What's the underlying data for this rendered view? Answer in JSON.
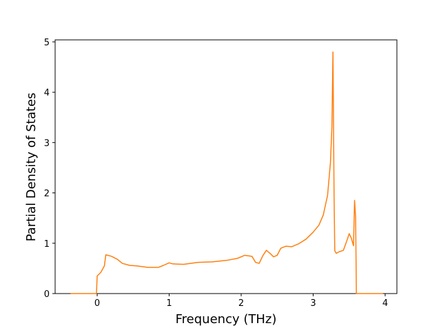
{
  "chart_data": {
    "type": "line",
    "x_label": "Frequency (THz)",
    "y_label": "Partial Density of States",
    "x": [
      -0.37,
      -0.01,
      0.0,
      0.05,
      0.1,
      0.12,
      0.2,
      0.28,
      0.35,
      0.45,
      0.55,
      0.7,
      0.85,
      0.92,
      1.0,
      1.05,
      1.2,
      1.4,
      1.6,
      1.8,
      1.95,
      2.05,
      2.15,
      2.2,
      2.25,
      2.3,
      2.35,
      2.4,
      2.45,
      2.5,
      2.55,
      2.62,
      2.7,
      2.8,
      2.9,
      3.0,
      3.08,
      3.14,
      3.2,
      3.24,
      3.26,
      3.275,
      3.29,
      3.3,
      3.32,
      3.36,
      3.42,
      3.48,
      3.5,
      3.53,
      3.56,
      3.575,
      3.59,
      3.6,
      3.97
    ],
    "series": [
      {
        "color": "#ff7f0e",
        "values": [
          0,
          0,
          0.35,
          0.42,
          0.55,
          0.77,
          0.74,
          0.68,
          0.6,
          0.56,
          0.55,
          0.52,
          0.52,
          0.56,
          0.61,
          0.59,
          0.58,
          0.62,
          0.63,
          0.66,
          0.7,
          0.76,
          0.74,
          0.62,
          0.6,
          0.75,
          0.86,
          0.8,
          0.73,
          0.76,
          0.9,
          0.94,
          0.93,
          0.99,
          1.08,
          1.22,
          1.36,
          1.56,
          1.95,
          2.6,
          3.3,
          4.8,
          2.0,
          0.85,
          0.8,
          0.83,
          0.86,
          1.1,
          1.19,
          1.1,
          0.95,
          1.85,
          1.5,
          0,
          0
        ]
      }
    ],
    "xlim": [
      -0.584,
      4.163
    ],
    "xticks": [
      0,
      1,
      2,
      3,
      4
    ],
    "ylim": [
      0,
      5.04
    ],
    "yticks": [
      0,
      1,
      2,
      3,
      4,
      5
    ]
  }
}
